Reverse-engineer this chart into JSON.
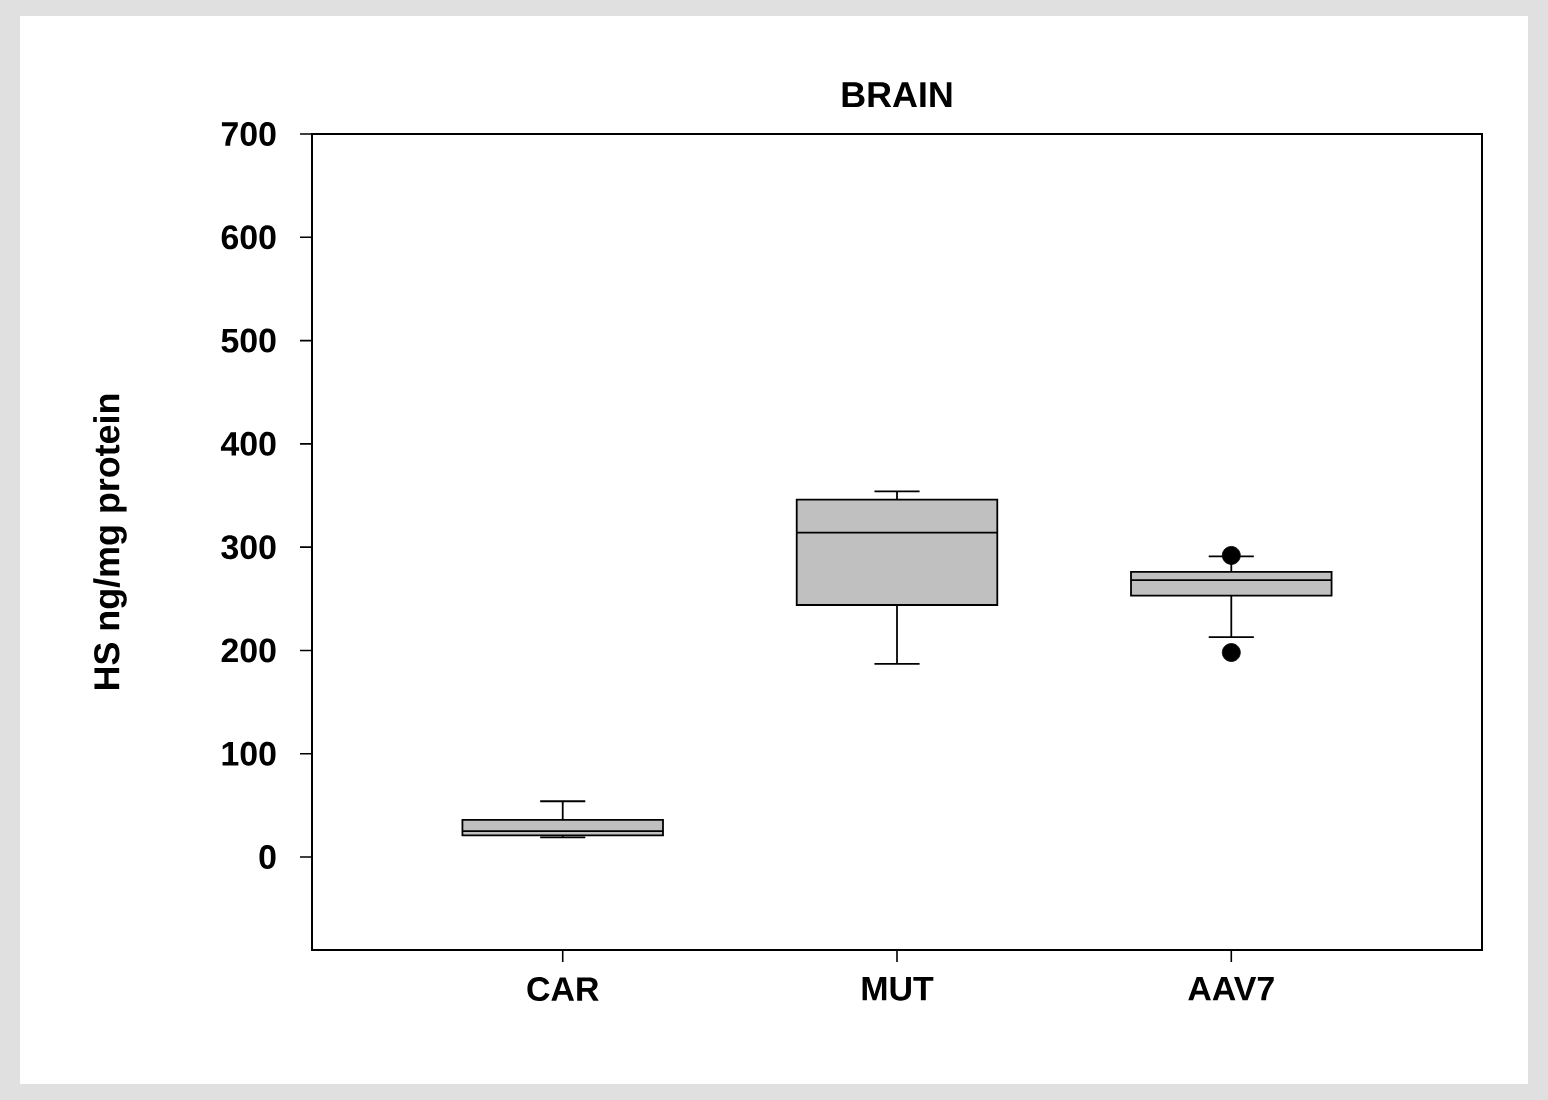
{
  "chart_data": {
    "type": "box",
    "title": "BRAIN",
    "ylabel": "HS ng/mg protein",
    "categories": [
      "CAR",
      "MUT",
      "AAV7"
    ],
    "boxes": [
      {
        "low": 19,
        "q1": 21,
        "median": 25,
        "q3": 36,
        "high": 54
      },
      {
        "low": 187,
        "q1": 244,
        "median": 314,
        "q3": 346,
        "high": 354
      },
      {
        "low": 213,
        "q1": 253,
        "median": 268,
        "q3": 276,
        "high": 291,
        "outliers": [
          292,
          198
        ]
      }
    ],
    "color": "#c0c0c0",
    "ylim": [
      -90,
      700
    ],
    "yticks": [
      0,
      100,
      200,
      300,
      400,
      500,
      600,
      700
    ]
  }
}
